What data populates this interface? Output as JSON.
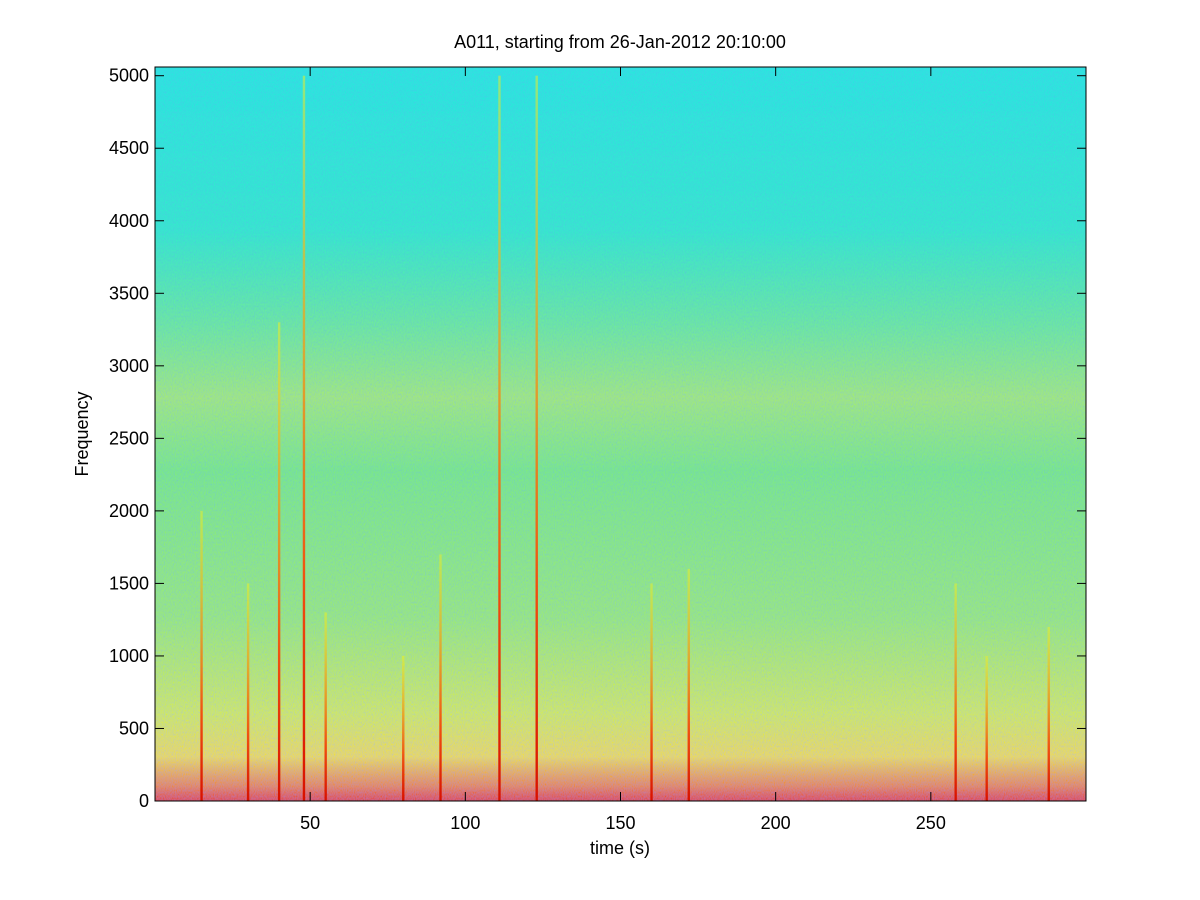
{
  "chart_data": {
    "type": "spectrogram",
    "title": "A011, starting from 26-Jan-2012 20:10:00",
    "x_label": "time (s)",
    "y_label": "Frequency",
    "xlim": [
      0,
      300
    ],
    "ylim": [
      0,
      5060
    ],
    "xticks": [
      50,
      100,
      150,
      200,
      250
    ],
    "yticks": [
      0,
      500,
      1000,
      1500,
      2000,
      2500,
      3000,
      3500,
      4000,
      4500,
      5000
    ],
    "x": [
      15,
      30,
      40,
      48,
      55,
      80,
      92,
      111,
      123,
      160,
      172,
      258,
      268,
      288
    ],
    "values": [
      2000,
      1500,
      3300,
      5000,
      1300,
      1000,
      1700,
      5000,
      5000,
      1500,
      1600,
      1500,
      1000,
      1200
    ]
  }
}
